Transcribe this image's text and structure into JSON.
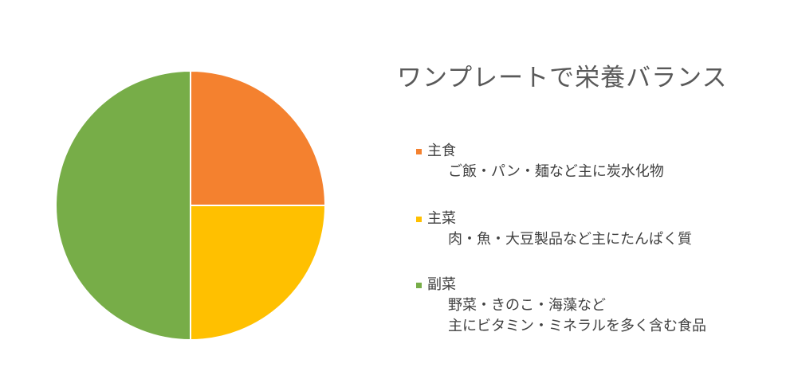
{
  "chart_data": {
    "type": "pie",
    "title": "ワンプレートで栄養バランス",
    "categories": [
      "主食",
      "主菜",
      "副菜"
    ],
    "values": [
      25,
      25,
      50
    ],
    "colors": [
      "#F4812F",
      "#FFC000",
      "#77AD48"
    ],
    "legend_position": "right",
    "legend": [
      {
        "name": "主食",
        "description": [
          "ご飯・パン・麺など主に炭水化物"
        ]
      },
      {
        "name": "主菜",
        "description": [
          "肉・魚・大豆製品など主にたんぱく質"
        ]
      },
      {
        "name": "副菜",
        "description": [
          "野菜・きのこ・海藻など",
          "主にビタミン・ミネラルを多く含む食品"
        ]
      }
    ]
  }
}
